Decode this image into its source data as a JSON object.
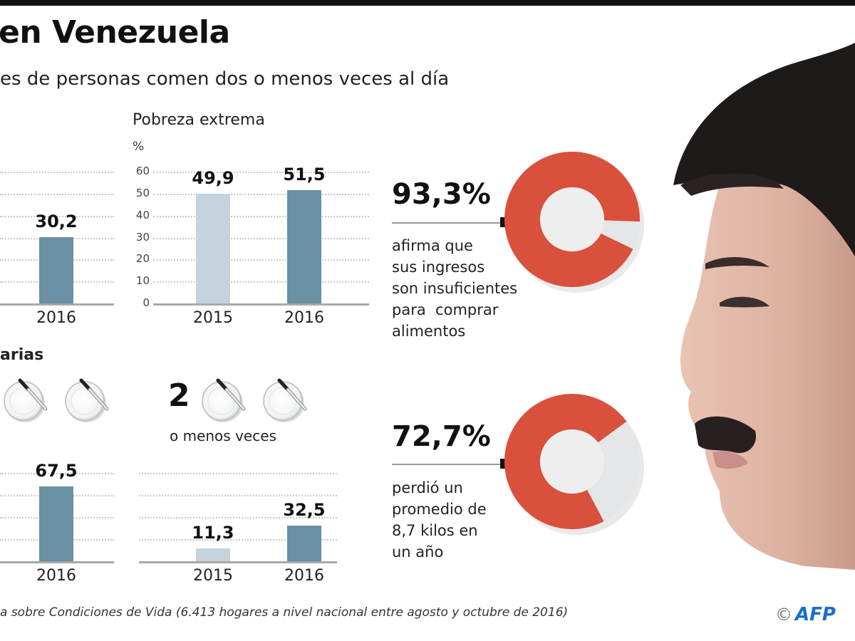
{
  "header": {
    "title": "en Venezuela",
    "subtitle": "es de personas comen dos o menos veces al día"
  },
  "colors": {
    "bar_2015": "#c4d3de",
    "bar_2016": "#6b8fa3",
    "donut_main": "#d9503c",
    "donut_rest": "#e5e6e8",
    "credit": "#1a6fc4"
  },
  "chart_data": [
    {
      "id": "top-left",
      "type": "bar",
      "title": "",
      "categories": [
        "2016"
      ],
      "values": [
        30.2
      ],
      "value_labels": [
        "30,2"
      ],
      "ylim": [
        0,
        60
      ],
      "grid": true
    },
    {
      "id": "pobreza-extrema",
      "type": "bar",
      "title": "Pobreza extrema",
      "ylabel": "%",
      "categories": [
        "2015",
        "2016"
      ],
      "values": [
        49.9,
        51.5
      ],
      "value_labels": [
        "49,9",
        "51,5"
      ],
      "yticks": [
        "0",
        "10",
        "20",
        "30",
        "40",
        "50",
        "60"
      ],
      "ylim": [
        0,
        60
      ],
      "grid": true
    },
    {
      "id": "bottom-left",
      "type": "bar",
      "title": "arias",
      "categories": [
        "2016"
      ],
      "values": [
        67.5
      ],
      "value_labels": [
        "67,5"
      ],
      "ylim": [
        0,
        80
      ],
      "grid": true
    },
    {
      "id": "dos-o-menos",
      "type": "bar",
      "title": "2 o menos veces",
      "categories": [
        "2015",
        "2016"
      ],
      "values": [
        11.3,
        32.5
      ],
      "value_labels": [
        "11,3",
        "32,5"
      ],
      "ylim": [
        0,
        80
      ],
      "grid": true
    },
    {
      "id": "donut-ingresos",
      "type": "pie",
      "values": [
        93.3,
        6.7
      ],
      "label": "93,3%",
      "description": [
        "afirma que",
        "sus ingresos",
        "son insuficientes",
        "para  comprar",
        "alimentos"
      ]
    },
    {
      "id": "donut-kilos",
      "type": "pie",
      "values": [
        72.7,
        27.3
      ],
      "label": "72,7%",
      "description": [
        "perdió un",
        "promedio de",
        "8,7 kilos en",
        "un año"
      ]
    }
  ],
  "meals": {
    "section_title": "arias",
    "two_number": "2",
    "two_label": "o menos veces"
  },
  "footer": {
    "source": "a sobre Condiciones de Vida (6.413 hogares a nivel nacional entre agosto y octubre de 2016)",
    "copyright_symbol": "©",
    "credit": "AFP"
  }
}
